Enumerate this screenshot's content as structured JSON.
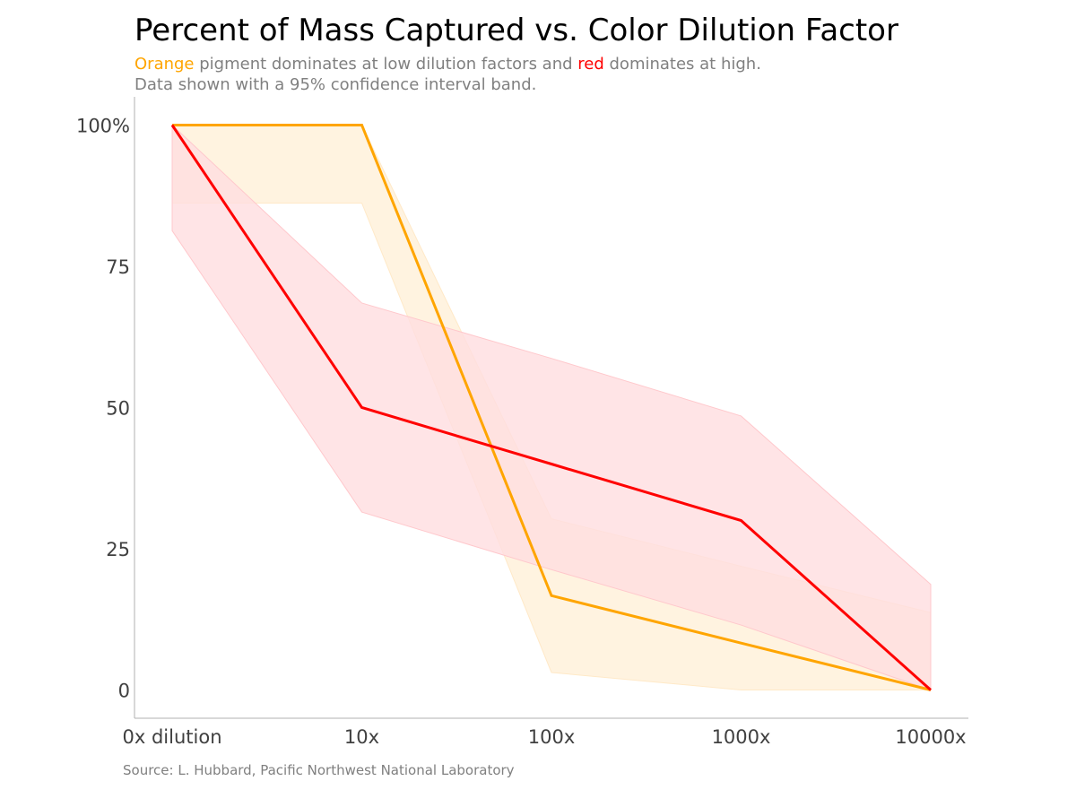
{
  "title": "Percent of Mass Captured vs. Color Dilution Factor",
  "subtitle": {
    "orange_word": "Orange",
    "line1_mid": " pigment dominates at low dilution factors and ",
    "red_word": "red",
    "line1_end": " dominates at high.",
    "line2": "Data shown with a 95% confidence interval band."
  },
  "source": "Source: L. Hubbard, Pacific Northwest National Laboratory",
  "colors": {
    "orange": "#FFA500",
    "red": "#FF0000",
    "orange_band": "#FFF3E0",
    "red_band": "#FFDDE0",
    "axis": "#B0B0B0",
    "text_muted": "#808080",
    "tick_text": "#404040"
  },
  "chart_data": {
    "type": "line",
    "categories": [
      "0x dilution",
      "10x",
      "100x",
      "1000x",
      "10000x"
    ],
    "ylim": [
      -5,
      105
    ],
    "y_ticks": [
      0,
      25,
      50,
      75,
      100
    ],
    "y_tick_labels": [
      "0",
      "25",
      "50",
      "75",
      "100%"
    ],
    "grid": false,
    "series": [
      {
        "name": "Orange",
        "color": "#FFA500",
        "values": [
          100,
          100,
          16.7,
          8.3,
          0
        ],
        "ci_lower": [
          86.2,
          86.2,
          3.1,
          0,
          0
        ],
        "ci_upper": [
          100,
          100,
          30.3,
          21.9,
          13.7
        ]
      },
      {
        "name": "red",
        "color": "#FF0000",
        "values": [
          100,
          50,
          40,
          30,
          0
        ],
        "ci_lower": [
          81.3,
          31.5,
          21.3,
          11.5,
          0
        ],
        "ci_upper": [
          100,
          68.5,
          58.7,
          48.5,
          18.7
        ]
      }
    ]
  }
}
